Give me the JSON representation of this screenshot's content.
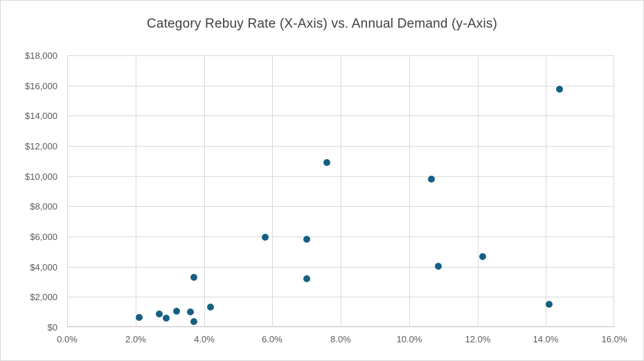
{
  "chart_data": {
    "type": "scatter",
    "title": "Category Rebuy Rate (X-Axis) vs. Annual Demand (y-Axis)",
    "xlabel": "",
    "ylabel": "",
    "xlim": [
      0,
      16
    ],
    "ylim": [
      0,
      18000
    ],
    "grid": true,
    "legend": "none",
    "x_ticks": [
      0,
      2,
      4,
      6,
      8,
      10,
      12,
      14,
      16
    ],
    "x_tick_labels": [
      "0.0%",
      "2.0%",
      "4.0%",
      "6.0%",
      "8.0%",
      "10.0%",
      "12.0%",
      "14.0%",
      "16.0%"
    ],
    "y_ticks": [
      0,
      2000,
      4000,
      6000,
      8000,
      10000,
      12000,
      14000,
      16000,
      18000
    ],
    "y_tick_labels": [
      "$0",
      "$2,000",
      "$4,000",
      "$6,000",
      "$8,000",
      "$10,000",
      "$12,000",
      "$14,000",
      "$16,000",
      "$18,000"
    ],
    "points": [
      {
        "x": 2.1,
        "y": 625
      },
      {
        "x": 2.7,
        "y": 875
      },
      {
        "x": 2.9,
        "y": 600
      },
      {
        "x": 3.2,
        "y": 1075
      },
      {
        "x": 3.6,
        "y": 1025
      },
      {
        "x": 3.7,
        "y": 350
      },
      {
        "x": 3.7,
        "y": 3300
      },
      {
        "x": 4.2,
        "y": 1325
      },
      {
        "x": 5.8,
        "y": 5950
      },
      {
        "x": 7.0,
        "y": 5800
      },
      {
        "x": 7.0,
        "y": 3200
      },
      {
        "x": 7.6,
        "y": 10900
      },
      {
        "x": 10.65,
        "y": 9800
      },
      {
        "x": 10.85,
        "y": 4050
      },
      {
        "x": 12.15,
        "y": 4650
      },
      {
        "x": 14.1,
        "y": 1500
      },
      {
        "x": 14.4,
        "y": 15750
      }
    ],
    "colors": {
      "point": "#156082",
      "gridline": "#D9D9D9",
      "axis_line": "#BFBFBF",
      "tick_label": "#595959",
      "title": "#404040",
      "background": "#FFFFFF",
      "chart_border": "#D9D9D9"
    }
  }
}
